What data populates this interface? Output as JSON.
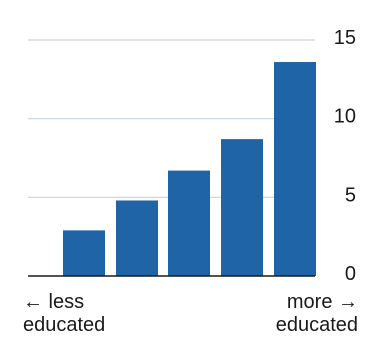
{
  "chart_data": {
    "type": "bar",
    "categories": [
      "",
      "",
      "",
      "",
      ""
    ],
    "values": [
      2.9,
      4.8,
      6.7,
      8.7,
      13.6
    ],
    "ylim": [
      0,
      15
    ],
    "yticks": [
      0,
      5,
      10,
      15
    ],
    "ytick_labels": [
      "0",
      "5",
      "10",
      "15"
    ],
    "y_axis_side": "right",
    "grid": true,
    "bar_color": "#1f64a6",
    "x_left_label": [
      "← less",
      "educated"
    ],
    "x_right_label": [
      "more →",
      "educated"
    ]
  }
}
